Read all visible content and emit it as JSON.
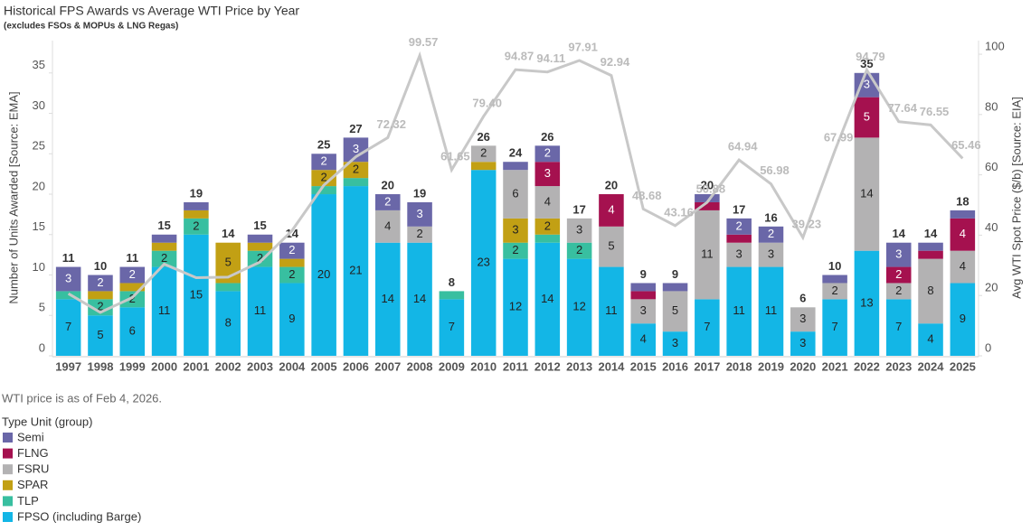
{
  "chart_data": {
    "type": "bar",
    "stacked": true,
    "title": "Historical FPS Awards vs Average WTI Price by Year",
    "subtitle": "(excludes FSOs & MOPUs & LNG Regas)",
    "y_label": "Number of Units Awarded [Source: EMA]",
    "y2_label": "Avg WTI Spot Price ($/b) [Source: EIA]",
    "note": "WTI price is as of Feb 4, 2026.",
    "legend_title": "Type Unit (group)",
    "categories": [
      "1997",
      "1998",
      "1999",
      "2000",
      "2001",
      "2002",
      "2003",
      "2004",
      "2005",
      "2006",
      "2007",
      "2008",
      "2009",
      "2010",
      "2011",
      "2012",
      "2013",
      "2014",
      "2015",
      "2016",
      "2017",
      "2018",
      "2019",
      "2020",
      "2021",
      "2022",
      "2023",
      "2024",
      "2025"
    ],
    "ylim": [
      0,
      39
    ],
    "yticks": [
      0,
      5,
      10,
      15,
      20,
      25,
      30,
      35
    ],
    "y2lim": [
      0,
      104.5
    ],
    "y2ticks": [
      0,
      20,
      40,
      60,
      80,
      100
    ],
    "series": [
      {
        "name": "FPSO (including Barge)",
        "color": "#13b6e6",
        "label_color": "#222",
        "values": [
          7,
          5,
          6,
          11,
          15,
          8,
          11,
          9,
          20,
          21,
          14,
          14,
          7,
          23,
          12,
          14,
          12,
          11,
          4,
          3,
          7,
          11,
          11,
          3,
          7,
          13,
          7,
          4,
          9
        ]
      },
      {
        "name": "TLP",
        "color": "#38bfa0",
        "label_color": "#222",
        "values": [
          1,
          2,
          2,
          2,
          2,
          1,
          2,
          2,
          1,
          1,
          0,
          0,
          1,
          0,
          2,
          1,
          2,
          0,
          0,
          0,
          0,
          0,
          0,
          0,
          0,
          0,
          0,
          0,
          0
        ]
      },
      {
        "name": "SPAR",
        "color": "#c2a014",
        "label_color": "#222",
        "values": [
          0,
          1,
          1,
          1,
          1,
          5,
          1,
          1,
          2,
          2,
          0,
          0,
          0,
          1,
          3,
          2,
          0,
          0,
          0,
          0,
          0,
          0,
          0,
          0,
          0,
          0,
          0,
          0,
          0
        ]
      },
      {
        "name": "FSRU",
        "color": "#b3b2b3",
        "label_color": "#222",
        "values": [
          0,
          0,
          0,
          0,
          0,
          0,
          0,
          0,
          0,
          0,
          4,
          2,
          0,
          2,
          6,
          4,
          3,
          5,
          3,
          5,
          11,
          3,
          3,
          3,
          2,
          14,
          2,
          8,
          4
        ]
      },
      {
        "name": "FLNG",
        "color": "#a5114f",
        "label_color": "#fff",
        "values": [
          0,
          0,
          0,
          0,
          0,
          0,
          0,
          0,
          0,
          0,
          0,
          0,
          0,
          0,
          0,
          3,
          0,
          4,
          1,
          0,
          1,
          1,
          0,
          0,
          0,
          5,
          2,
          1,
          4
        ]
      },
      {
        "name": "Semi",
        "color": "#6a67a8",
        "label_color": "#fff",
        "values": [
          3,
          2,
          2,
          1,
          1,
          0,
          1,
          2,
          2,
          3,
          2,
          3,
          0,
          0,
          1,
          2,
          0,
          0,
          1,
          1,
          1,
          2,
          2,
          0,
          1,
          3,
          3,
          1,
          1
        ]
      }
    ],
    "totals": [
      11,
      10,
      11,
      15,
      19,
      14,
      15,
      14,
      25,
      27,
      20,
      19,
      8,
      26,
      24,
      26,
      17,
      20,
      9,
      9,
      20,
      17,
      16,
      6,
      10,
      35,
      14,
      14,
      18
    ],
    "wti": {
      "type": "line",
      "axis": "y2",
      "color": "#c8c8c8",
      "values": [
        20.6,
        14.4,
        19.3,
        30.4,
        25.9,
        26.1,
        31.1,
        41.5,
        56.6,
        66.0,
        72.32,
        99.57,
        61.65,
        79.4,
        94.87,
        94.11,
        97.91,
        92.94,
        48.68,
        43.16,
        50.88,
        64.94,
        56.98,
        39.23,
        67.99,
        94.79,
        77.64,
        76.55,
        65.46
      ],
      "value_labels": [
        null,
        null,
        null,
        null,
        null,
        null,
        null,
        null,
        null,
        null,
        "72.32",
        "99.57",
        "61.65",
        "79.40",
        "94.87",
        "94.11",
        "97.91",
        "92.94",
        "48.68",
        "43.16",
        "50.88",
        "64.94",
        "56.98",
        "39.23",
        "67.99",
        "94.79",
        "77.64",
        "76.55",
        "65.46"
      ]
    }
  }
}
